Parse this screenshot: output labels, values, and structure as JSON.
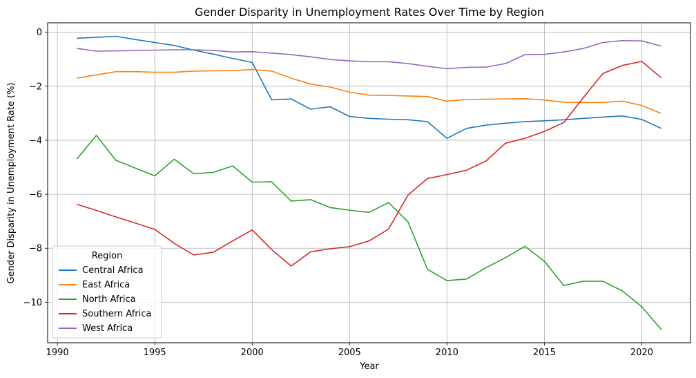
{
  "chart_data": {
    "type": "line",
    "title": "Gender Disparity in Unemployment Rates Over Time by Region",
    "xlabel": "Year",
    "ylabel": "Gender Disparity in Unemployment Rate (%)",
    "xlim": [
      1989.5,
      2022.5
    ],
    "ylim": [
      -11.5,
      0.35
    ],
    "xticks": [
      1990,
      1995,
      2000,
      2005,
      2010,
      2015,
      2020
    ],
    "yticks": [
      0,
      -2,
      -4,
      -6,
      -8,
      -10
    ],
    "ytick_labels": [
      "0",
      "−2",
      "−4",
      "−6",
      "−8",
      "−10"
    ],
    "grid": true,
    "legend": {
      "title": "Region",
      "placement": "lower-left"
    },
    "x": [
      1991,
      1992,
      1993,
      1994,
      1995,
      1996,
      1997,
      1998,
      1999,
      2000,
      2001,
      2002,
      2003,
      2004,
      2005,
      2006,
      2007,
      2008,
      2009,
      2010,
      2011,
      2012,
      2013,
      2014,
      2015,
      2016,
      2017,
      2018,
      2019,
      2020,
      2021
    ],
    "series": [
      {
        "name": "Central Africa",
        "color": "#1f77b4",
        "values": [
          -0.22,
          -0.19,
          -0.15,
          -0.27,
          -0.38,
          -0.49,
          -0.66,
          -0.81,
          -0.97,
          -1.12,
          -2.5,
          -2.47,
          -2.85,
          -2.76,
          -3.12,
          -3.19,
          -3.22,
          -3.24,
          -3.31,
          -3.93,
          -3.56,
          -3.44,
          -3.37,
          -3.31,
          -3.28,
          -3.24,
          -3.19,
          -3.14,
          -3.1,
          -3.23,
          -3.56
        ]
      },
      {
        "name": "East Africa",
        "color": "#ff7f0e",
        "values": [
          -1.7,
          -1.58,
          -1.46,
          -1.46,
          -1.48,
          -1.48,
          -1.44,
          -1.43,
          -1.42,
          -1.38,
          -1.44,
          -1.7,
          -1.92,
          -2.03,
          -2.22,
          -2.33,
          -2.34,
          -2.36,
          -2.38,
          -2.55,
          -2.49,
          -2.48,
          -2.47,
          -2.46,
          -2.51,
          -2.59,
          -2.6,
          -2.6,
          -2.55,
          -2.71,
          -3.01
        ]
      },
      {
        "name": "North Africa",
        "color": "#2ca02c",
        "values": [
          -4.7,
          -3.82,
          -4.74,
          -5.03,
          -5.32,
          -4.7,
          -5.24,
          -5.19,
          -4.95,
          -5.55,
          -5.54,
          -6.25,
          -6.2,
          -6.49,
          -6.59,
          -6.67,
          -6.31,
          -7.02,
          -8.78,
          -9.2,
          -9.14,
          -8.72,
          -8.35,
          -7.93,
          -8.48,
          -9.38,
          -9.22,
          -9.22,
          -9.58,
          -10.17,
          -11.01
        ]
      },
      {
        "name": "Southern Africa",
        "color": "#d62728",
        "values": [
          -6.37,
          -6.6,
          -6.84,
          -7.07,
          -7.3,
          -7.82,
          -8.25,
          -8.15,
          -7.73,
          -7.32,
          -8.05,
          -8.66,
          -8.13,
          -8.02,
          -7.94,
          -7.73,
          -7.29,
          -6.03,
          -5.42,
          -5.27,
          -5.11,
          -4.77,
          -4.11,
          -3.93,
          -3.67,
          -3.34,
          -2.42,
          -1.53,
          -1.23,
          -1.08,
          -1.69
        ]
      },
      {
        "name": "West Africa",
        "color": "#9467bd",
        "values": [
          -0.6,
          -0.7,
          -0.69,
          -0.68,
          -0.66,
          -0.65,
          -0.65,
          -0.67,
          -0.73,
          -0.72,
          -0.77,
          -0.83,
          -0.91,
          -1.01,
          -1.06,
          -1.09,
          -1.09,
          -1.16,
          -1.26,
          -1.35,
          -1.3,
          -1.29,
          -1.16,
          -0.83,
          -0.82,
          -0.73,
          -0.6,
          -0.38,
          -0.31,
          -0.32,
          -0.51
        ]
      }
    ]
  }
}
